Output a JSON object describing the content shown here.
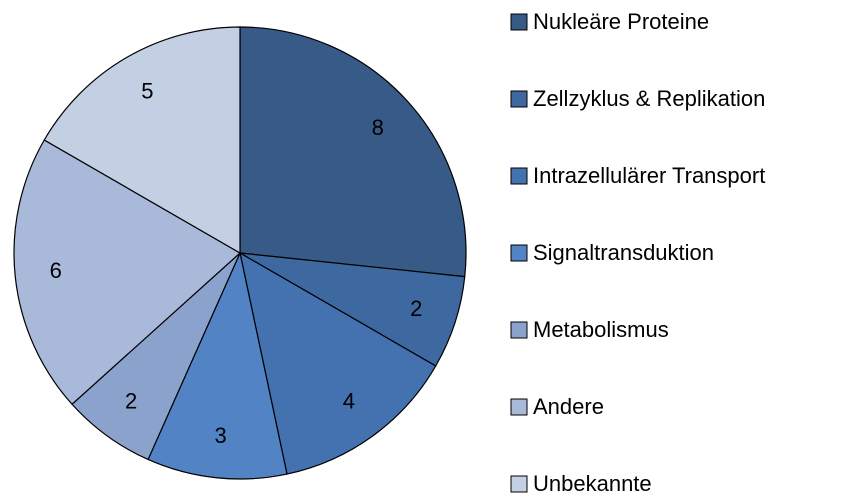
{
  "chart_data": {
    "type": "pie",
    "categories": [
      "Nukleäre Proteine",
      "Zellzyklus & Replikation",
      "Intrazellulärer Transport",
      "Signaltransduktion",
      "Metabolismus",
      "Andere",
      "Unbekannte"
    ],
    "values": [
      8,
      2,
      4,
      3,
      2,
      6,
      5
    ],
    "colors": [
      "#375a87",
      "#3d68a0",
      "#4472b0",
      "#5283c5",
      "#8aa2cc",
      "#a9b9d9",
      "#c3cfe3"
    ],
    "legend": "right"
  }
}
